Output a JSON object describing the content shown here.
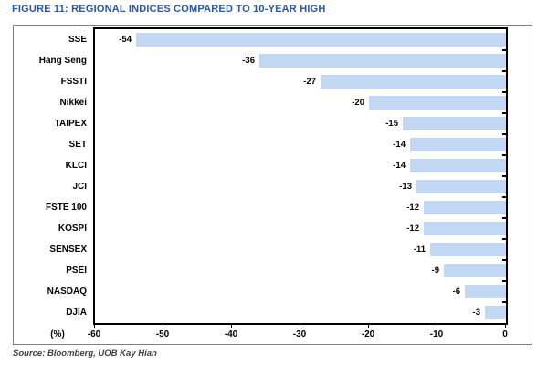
{
  "figure": {
    "title": "FIGURE 11: REGIONAL INDICES COMPARED TO 10-YEAR HIGH",
    "source_note": "Source: Bloomberg, UOB Kay Hian"
  },
  "chart_data": {
    "type": "bar",
    "orientation": "horizontal",
    "title": "FIGURE 11: REGIONAL INDICES COMPARED TO 10-YEAR HIGH",
    "categories": [
      "SSE",
      "Hang Seng",
      "FSSTI",
      "Nikkei",
      "TAIPEX",
      "SET",
      "KLCI",
      "JCI",
      "FSTE 100",
      "KOSPI",
      "SENSEX",
      "PSEI",
      "NASDAQ",
      "DJIA"
    ],
    "values": [
      -54,
      -36,
      -27,
      -20,
      -15,
      -14,
      -14,
      -13,
      -12,
      -12,
      -11,
      -9,
      -6,
      -3
    ],
    "xlabel": "(%)",
    "xlim": [
      -60,
      0
    ],
    "x_ticks": [
      "-60",
      "-50",
      "-40",
      "-30",
      "-20",
      "-10",
      "0"
    ],
    "grid": false,
    "legend": "none",
    "value_labels": true,
    "bar_color": "#c2d7f4",
    "title_color": "#2856a6",
    "axis_color": "#000000",
    "frame_border_color": "#7f7f7f"
  }
}
